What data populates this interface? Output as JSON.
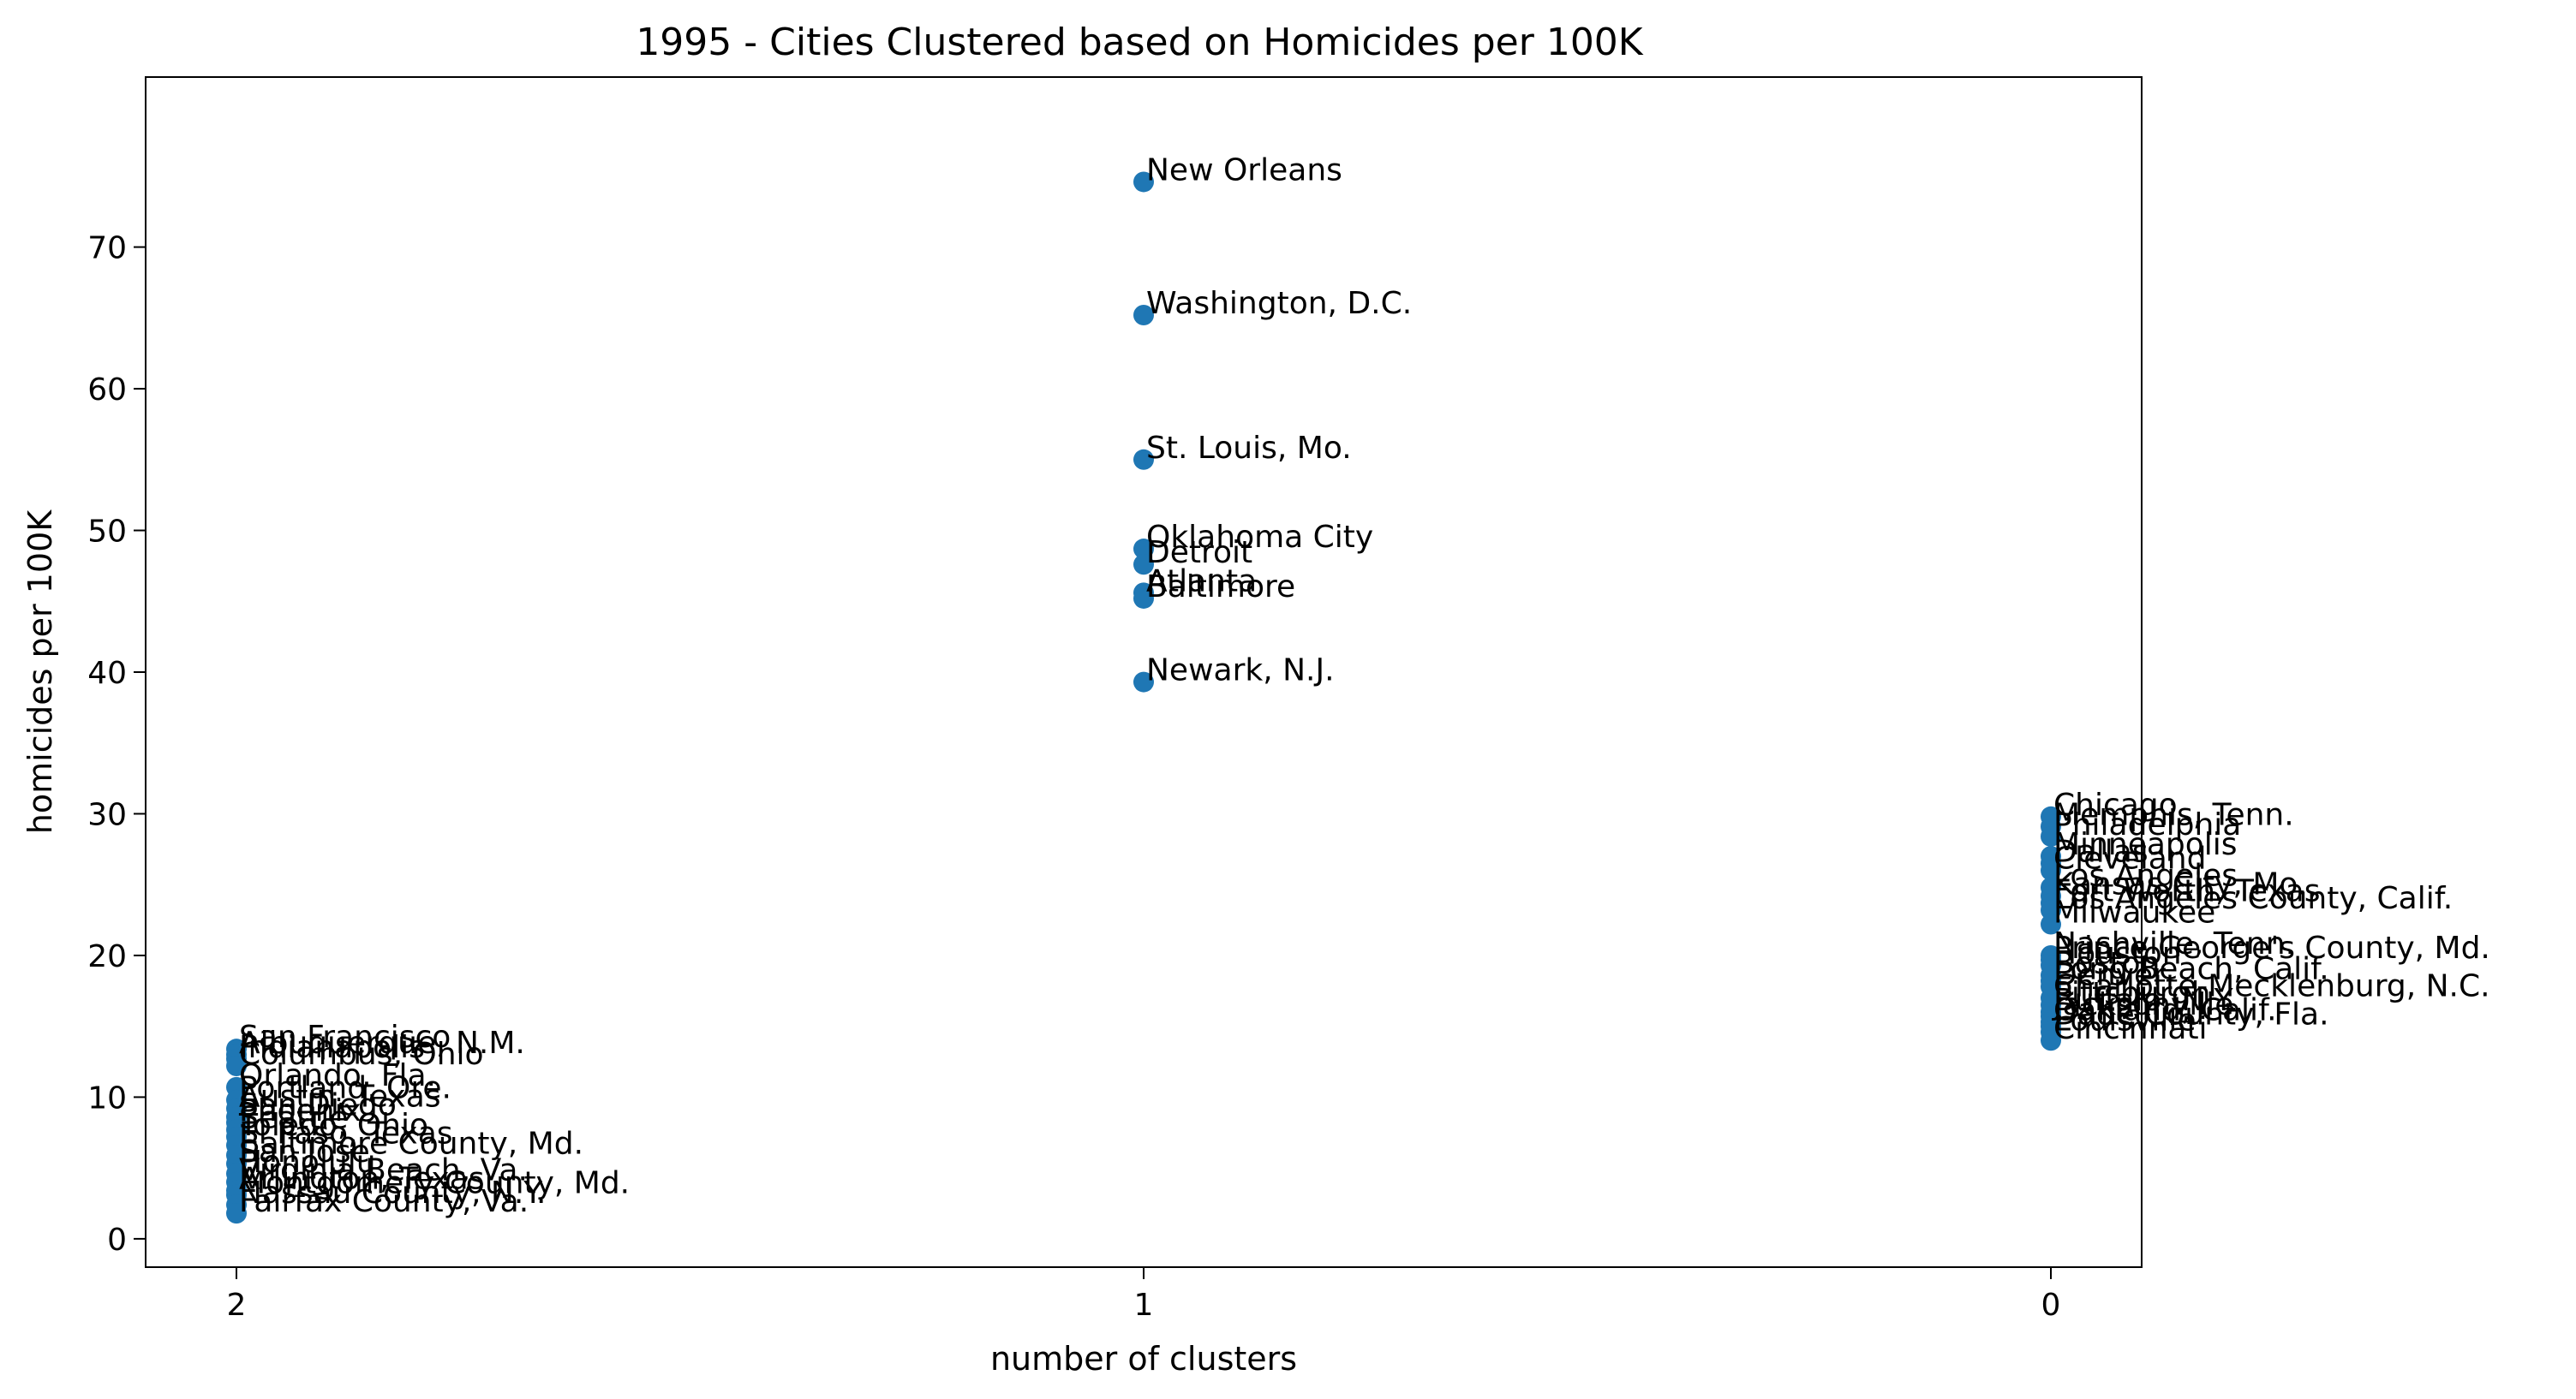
{
  "chart_data": {
    "type": "scatter",
    "title": "1995 - Cities Clustered based on Homicides per 100K",
    "xlabel": "number of clusters",
    "ylabel": "homicides per 100K",
    "x_categories": [
      "2",
      "1",
      "0"
    ],
    "ylim": [
      -2,
      82
    ],
    "y_ticks": [
      0,
      10,
      20,
      30,
      40,
      50,
      60,
      70
    ],
    "grid": false,
    "marker_color": "#1f77b4",
    "points": [
      {
        "cluster": "1",
        "y": 74.6,
        "label": "New Orleans"
      },
      {
        "cluster": "1",
        "y": 65.2,
        "label": "Washington, D.C."
      },
      {
        "cluster": "1",
        "y": 55.0,
        "label": "St. Louis, Mo."
      },
      {
        "cluster": "1",
        "y": 48.7,
        "label": "Oklahoma City"
      },
      {
        "cluster": "1",
        "y": 47.6,
        "label": "Detroit"
      },
      {
        "cluster": "1",
        "y": 45.6,
        "label": "Atlanta"
      },
      {
        "cluster": "1",
        "y": 45.2,
        "label": "Baltimore"
      },
      {
        "cluster": "1",
        "y": 39.3,
        "label": "Newark, N.J."
      },
      {
        "cluster": "0",
        "y": 29.8,
        "label": "Chicago"
      },
      {
        "cluster": "0",
        "y": 29.1,
        "label": "Memphis, Tenn."
      },
      {
        "cluster": "0",
        "y": 28.4,
        "label": "Philadelphia"
      },
      {
        "cluster": "0",
        "y": 27.0,
        "label": "Minneapolis"
      },
      {
        "cluster": "0",
        "y": 26.5,
        "label": "Dallas"
      },
      {
        "cluster": "0",
        "y": 26.0,
        "label": "Cleveland"
      },
      {
        "cluster": "0",
        "y": 24.8,
        "label": "Los Angeles"
      },
      {
        "cluster": "0",
        "y": 24.2,
        "label": "Kansas City, Mo."
      },
      {
        "cluster": "0",
        "y": 23.7,
        "label": "Fort Worth, Texas"
      },
      {
        "cluster": "0",
        "y": 23.2,
        "label": "Los Angeles County, Calif."
      },
      {
        "cluster": "0",
        "y": 22.2,
        "label": "Milwaukee"
      },
      {
        "cluster": "0",
        "y": 20.0,
        "label": "Nashville, Tenn."
      },
      {
        "cluster": "0",
        "y": 19.7,
        "label": "Prince George's County, Md."
      },
      {
        "cluster": "0",
        "y": 19.3,
        "label": "Houston"
      },
      {
        "cluster": "0",
        "y": 18.6,
        "label": "Boston"
      },
      {
        "cluster": "0",
        "y": 18.2,
        "label": "Long Beach, Calif."
      },
      {
        "cluster": "0",
        "y": 17.8,
        "label": "Denver"
      },
      {
        "cluster": "0",
        "y": 17.0,
        "label": "Charlotte-Mecklenburg, N.C."
      },
      {
        "cluster": "0",
        "y": 16.5,
        "label": "Pittsburgh"
      },
      {
        "cluster": "0",
        "y": 16.0,
        "label": "Buffalo, N.Y."
      },
      {
        "cluster": "0",
        "y": 15.7,
        "label": "Jacksonville"
      },
      {
        "cluster": "0",
        "y": 15.3,
        "label": "Oakland, Calif."
      },
      {
        "cluster": "0",
        "y": 15.0,
        "label": "Dade County, Fla."
      },
      {
        "cluster": "0",
        "y": 14.6,
        "label": "Louisville"
      },
      {
        "cluster": "0",
        "y": 14.0,
        "label": "Cincinnati"
      },
      {
        "cluster": "2",
        "y": 13.4,
        "label": "San Francisco"
      },
      {
        "cluster": "2",
        "y": 13.0,
        "label": "Albuquerque, N.M."
      },
      {
        "cluster": "2",
        "y": 12.7,
        "label": "Indianapolis"
      },
      {
        "cluster": "2",
        "y": 12.2,
        "label": "Columbus, Ohio"
      },
      {
        "cluster": "2",
        "y": 10.7,
        "label": "Orlando, Fla."
      },
      {
        "cluster": "2",
        "y": 9.8,
        "label": "Portland, Ore."
      },
      {
        "cluster": "2",
        "y": 9.2,
        "label": "Austin, Texas"
      },
      {
        "cluster": "2",
        "y": 8.6,
        "label": "San Diego"
      },
      {
        "cluster": "2",
        "y": 8.2,
        "label": "Phoenix"
      },
      {
        "cluster": "2",
        "y": 7.7,
        "label": "Seattle"
      },
      {
        "cluster": "2",
        "y": 7.2,
        "label": "Toledo, Ohio"
      },
      {
        "cluster": "2",
        "y": 6.6,
        "label": "El Paso, Texas"
      },
      {
        "cluster": "2",
        "y": 5.9,
        "label": "Baltimore County, Md."
      },
      {
        "cluster": "2",
        "y": 5.3,
        "label": "San Jose"
      },
      {
        "cluster": "2",
        "y": 4.6,
        "label": "Honolulu"
      },
      {
        "cluster": "2",
        "y": 4.0,
        "label": "Virginia Beach, Va."
      },
      {
        "cluster": "2",
        "y": 3.4,
        "label": "Arlington, Texas"
      },
      {
        "cluster": "2",
        "y": 3.1,
        "label": "Montgomery County, Md."
      },
      {
        "cluster": "2",
        "y": 2.4,
        "label": "Nassau County, N.Y."
      },
      {
        "cluster": "2",
        "y": 1.8,
        "label": "Fairfax County, Va."
      }
    ]
  }
}
